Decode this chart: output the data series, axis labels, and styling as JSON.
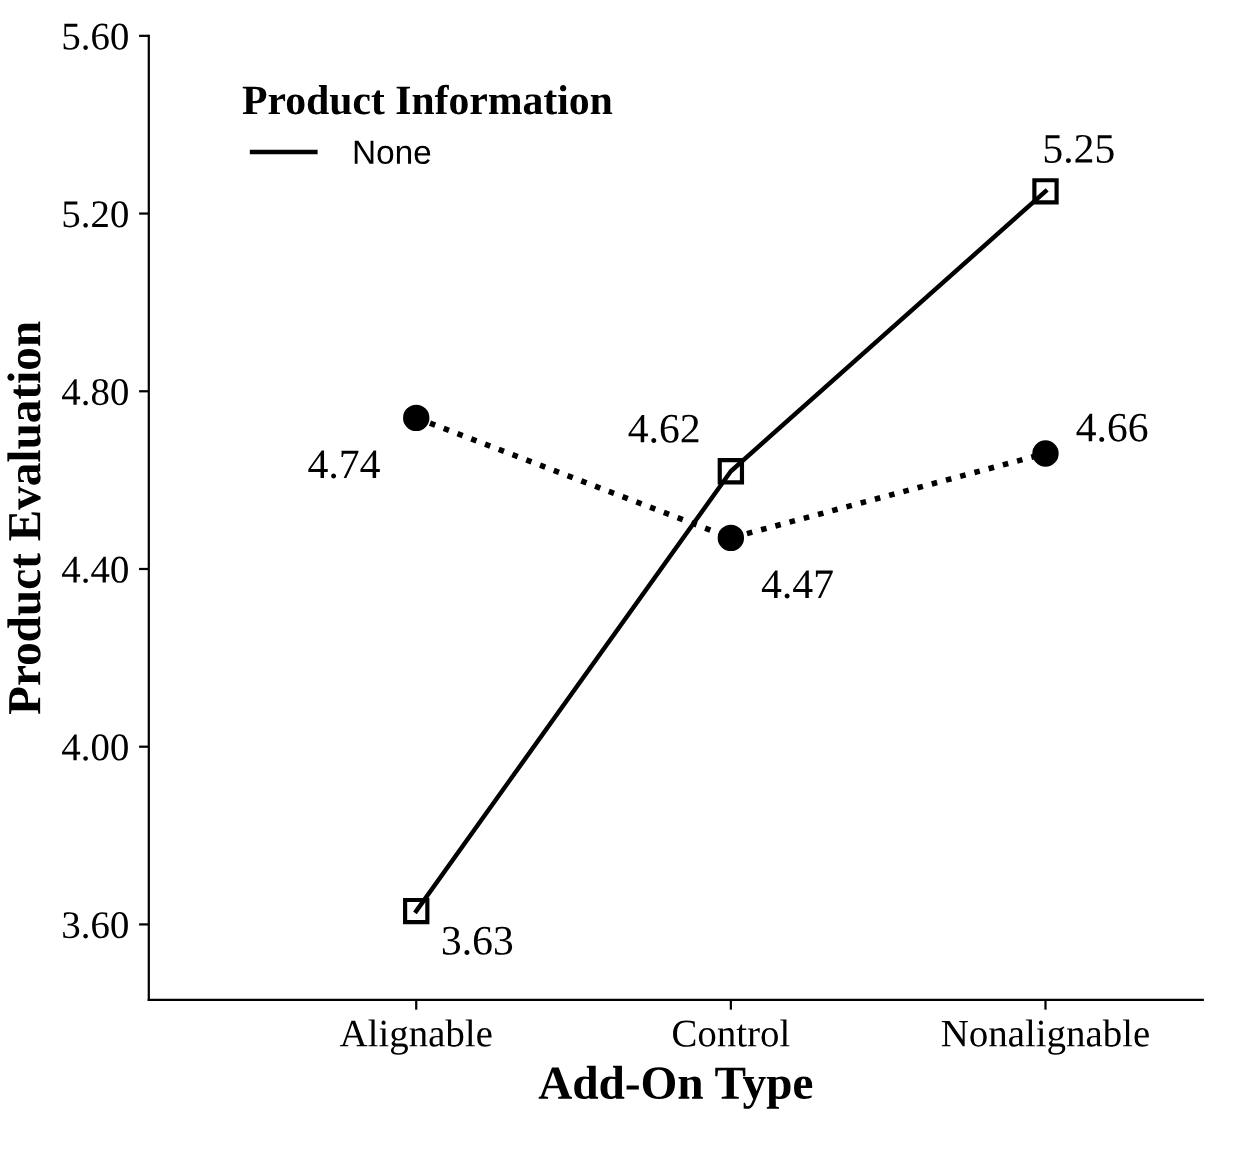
{
  "chart_data": {
    "type": "line",
    "xlabel": "Add-On Type",
    "ylabel": "Product Evaluation",
    "legend_title": "Product Information",
    "categories": [
      "Alignable",
      "Control",
      "Nonalignable"
    ],
    "series": [
      {
        "color": "#000000",
        "values": [
          4.74,
          4.47,
          4.66
        ],
        "marker": "circle",
        "line_style": "dotted"
      },
      {
        "name": "None",
        "color": "#000000",
        "values": [
          3.63,
          4.62,
          5.25
        ],
        "marker": "square",
        "line_style": "solid"
      }
    ],
    "ylim": [
      3.43,
      5.6
    ],
    "yticks": [
      {
        "value": 3.6,
        "label": "3.60"
      },
      {
        "value": 4.0,
        "label": "4.00"
      },
      {
        "value": 4.4,
        "label": "4.40"
      },
      {
        "value": 4.8,
        "label": "4.80"
      },
      {
        "value": 5.2,
        "label": "5.20"
      },
      {
        "value": 5.6,
        "label": "5.60"
      }
    ],
    "data_labels": true,
    "legend": "top left",
    "grid": false
  }
}
